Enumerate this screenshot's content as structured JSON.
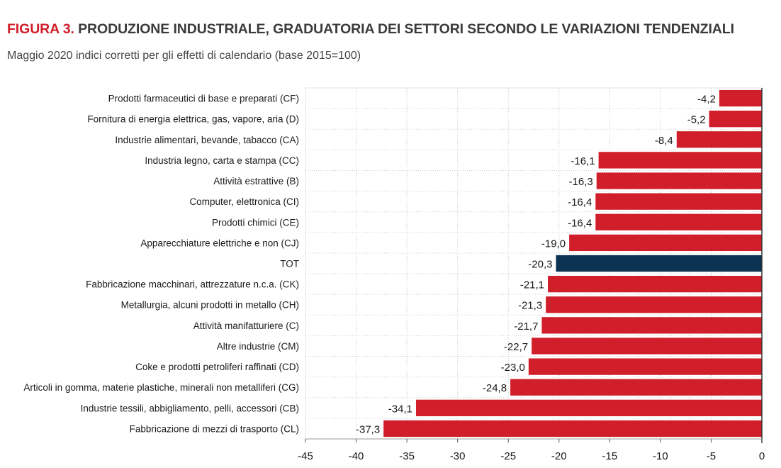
{
  "header": {
    "figure_tag": "FIGURA 3.",
    "title": "PRODUZIONE INDUSTRIALE, GRADUATORIA DEI SETTORI SECONDO LE VARIAZIONI TENDENZIALI",
    "subtitle": "Maggio 2020 indici corretti per gli effetti di calendario (base 2015=100)"
  },
  "colors": {
    "bar": "#d01e2a",
    "highlight": "#0b3251",
    "title_tag": "#d01e2a"
  },
  "chart_data": {
    "type": "bar",
    "orientation": "horizontal",
    "title": "PRODUZIONE INDUSTRIALE, GRADUATORIA DEI SETTORI SECONDO LE VARIAZIONI TENDENZIALI",
    "subtitle": "Maggio 2020 indici corretti per gli effetti di calendario (base 2015=100)",
    "xlabel": "",
    "ylabel": "",
    "xlim": [
      -45,
      0
    ],
    "ticks": [
      -45,
      -40,
      -35,
      -30,
      -25,
      -20,
      -15,
      -10,
      -5,
      0
    ],
    "tick_labels": [
      "-45",
      "-40",
      "-35",
      "-30",
      "-25",
      "-20",
      "-15",
      "-10",
      "-5",
      "0"
    ],
    "grid": "vertical dashed",
    "highlight_category": "TOT",
    "categories": [
      "Prodotti farmaceutici di base e preparati (CF)",
      "Fornitura di energia elettrica, gas, vapore, aria (D)",
      "Industrie alimentari, bevande, tabacco (CA)",
      "Industria legno, carta e stampa (CC)",
      "Attività estrattive (B)",
      "Computer, elettronica (CI)",
      "Prodotti chimici (CE)",
      "Apparecchiature elettriche e non (CJ)",
      "TOT",
      "Fabbricazione macchinari, attrezzature n.c.a. (CK)",
      "Metallurgia, alcuni prodotti in metallo (CH)",
      "Attività manifatturiere (C)",
      "Altre industrie (CM)",
      "Coke e prodotti petroliferi raffinati (CD)",
      "Articoli in gomma, materie plastiche, minerali non metalliferi (CG)",
      "Industrie tessili, abbigliamento, pelli, accessori (CB)",
      "Fabbricazione di mezzi di trasporto (CL)"
    ],
    "values": [
      -4.2,
      -5.2,
      -8.4,
      -16.1,
      -16.3,
      -16.4,
      -16.4,
      -19.0,
      -20.3,
      -21.1,
      -21.3,
      -21.7,
      -22.7,
      -23.0,
      -24.8,
      -34.1,
      -37.3
    ],
    "value_labels": [
      "-4,2",
      "-5,2",
      "-8,4",
      "-16,1",
      "-16,3",
      "-16,4",
      "-16,4",
      "-19,0",
      "-20,3",
      "-21,1",
      "-21,3",
      "-21,7",
      "-22,7",
      "-23,0",
      "-24,8",
      "-34,1",
      "-37,3"
    ]
  }
}
